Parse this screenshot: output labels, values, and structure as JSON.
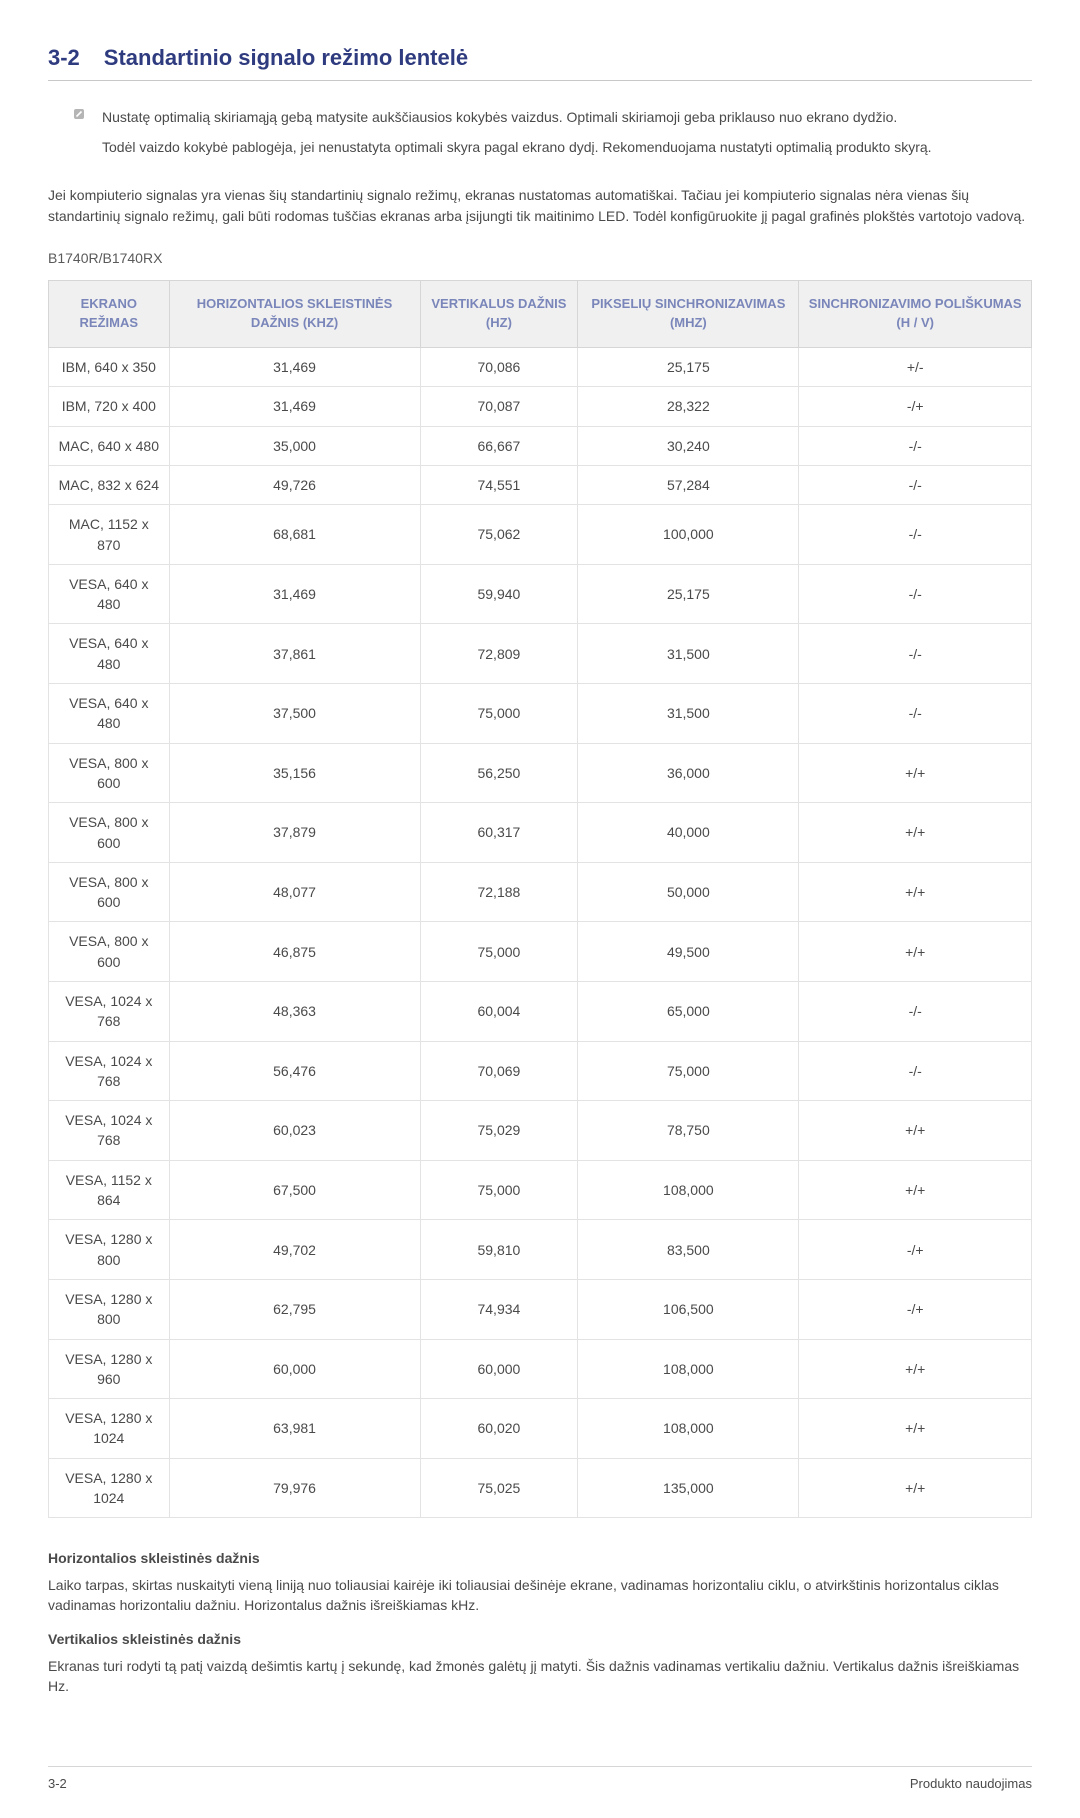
{
  "header": {
    "section_number": "3-2",
    "section_title": "Standartinio signalo režimo lentelė"
  },
  "notes": {
    "para1": "Nustatę optimalią skiriamąją gebą matysite aukščiausios kokybės vaizdus. Optimali skiriamoji geba priklauso nuo ekrano dydžio.",
    "para2": "Todėl vaizdo kokybė pablogėja, jei nenustatyta optimali skyra pagal ekrano dydį. Rekomenduojama nustatyti optimalią produkto skyrą."
  },
  "body_para": "Jei kompiuterio signalas yra vienas šių standartinių signalo režimų, ekranas nustatomas automatiškai. Tačiau jei kompiuterio signalas nėra vienas šių standartinių signalo režimų, gali būti rodomas tuščias ekranas arba įsijungti tik maitinimo LED. Todėl konfigūruokite jį pagal grafinės plokštės vartotojo vadovą.",
  "model_label": "B1740R/B1740RX",
  "table": {
    "columns": [
      "EKRANO REŽIMAS",
      "HORIZONTALIOS SKLEISTINĖS DAŽNIS (KHZ)",
      "VERTIKALUS DAŽNIS (HZ)",
      "PIKSELIŲ SINCHRONIZAVIMAS (MHZ)",
      "SINCHRONIZAVIMO POLIŠKUMAS (H / V)"
    ],
    "rows": [
      [
        "IBM, 640 x 350",
        "31,469",
        "70,086",
        "25,175",
        "+/-"
      ],
      [
        "IBM, 720 x 400",
        "31,469",
        "70,087",
        "28,322",
        "-/+"
      ],
      [
        "MAC, 640 x 480",
        "35,000",
        "66,667",
        "30,240",
        "-/-"
      ],
      [
        "MAC, 832 x 624",
        "49,726",
        "74,551",
        "57,284",
        "-/-"
      ],
      [
        "MAC, 1152 x 870",
        "68,681",
        "75,062",
        "100,000",
        "-/-"
      ],
      [
        "VESA, 640 x 480",
        "31,469",
        "59,940",
        "25,175",
        "-/-"
      ],
      [
        "VESA, 640 x 480",
        "37,861",
        "72,809",
        "31,500",
        "-/-"
      ],
      [
        "VESA, 640 x 480",
        "37,500",
        "75,000",
        "31,500",
        "-/-"
      ],
      [
        "VESA, 800 x 600",
        "35,156",
        "56,250",
        "36,000",
        "+/+"
      ],
      [
        "VESA, 800 x 600",
        "37,879",
        "60,317",
        "40,000",
        "+/+"
      ],
      [
        "VESA, 800 x 600",
        "48,077",
        "72,188",
        "50,000",
        "+/+"
      ],
      [
        "VESA, 800 x 600",
        "46,875",
        "75,000",
        "49,500",
        "+/+"
      ],
      [
        "VESA, 1024 x 768",
        "48,363",
        "60,004",
        "65,000",
        "-/-"
      ],
      [
        "VESA, 1024 x 768",
        "56,476",
        "70,069",
        "75,000",
        "-/-"
      ],
      [
        "VESA, 1024 x 768",
        "60,023",
        "75,029",
        "78,750",
        "+/+"
      ],
      [
        "VESA, 1152 x 864",
        "67,500",
        "75,000",
        "108,000",
        "+/+"
      ],
      [
        "VESA, 1280 x 800",
        "49,702",
        "59,810",
        "83,500",
        "-/+"
      ],
      [
        "VESA, 1280 x 800",
        "62,795",
        "74,934",
        "106,500",
        "-/+"
      ],
      [
        "VESA, 1280 x 960",
        "60,000",
        "60,000",
        "108,000",
        "+/+"
      ],
      [
        "VESA, 1280 x 1024",
        "63,981",
        "60,020",
        "108,000",
        "+/+"
      ],
      [
        "VESA, 1280 x 1024",
        "79,976",
        "75,025",
        "135,000",
        "+/+"
      ]
    ],
    "header_bg": "#f0f0f0",
    "header_color": "#7a86ba",
    "border_color": "#d6d6d6",
    "row_border_color": "#e3e3e3"
  },
  "definitions": [
    {
      "title": "Horizontalios skleistinės dažnis",
      "body": "Laiko tarpas, skirtas nuskaityti vieną liniją nuo toliausiai kairėje iki toliausiai dešinėje ekrane, vadinamas horizontaliu ciklu, o atvirkštinis horizontalus ciklas vadinamas horizontaliu dažniu. Horizontalus dažnis išreiškiamas kHz."
    },
    {
      "title": "Vertikalios skleistinės dažnis",
      "body": "Ekranas turi rodyti tą patį vaizdą dešimtis kartų į sekundę, kad žmonės galėtų jį matyti. Šis dažnis vadinamas vertikaliu dažniu. Vertikalus dažnis išreiškiamas Hz."
    }
  ],
  "footer": {
    "left": "3-2",
    "right": "Produkto naudojimas"
  }
}
